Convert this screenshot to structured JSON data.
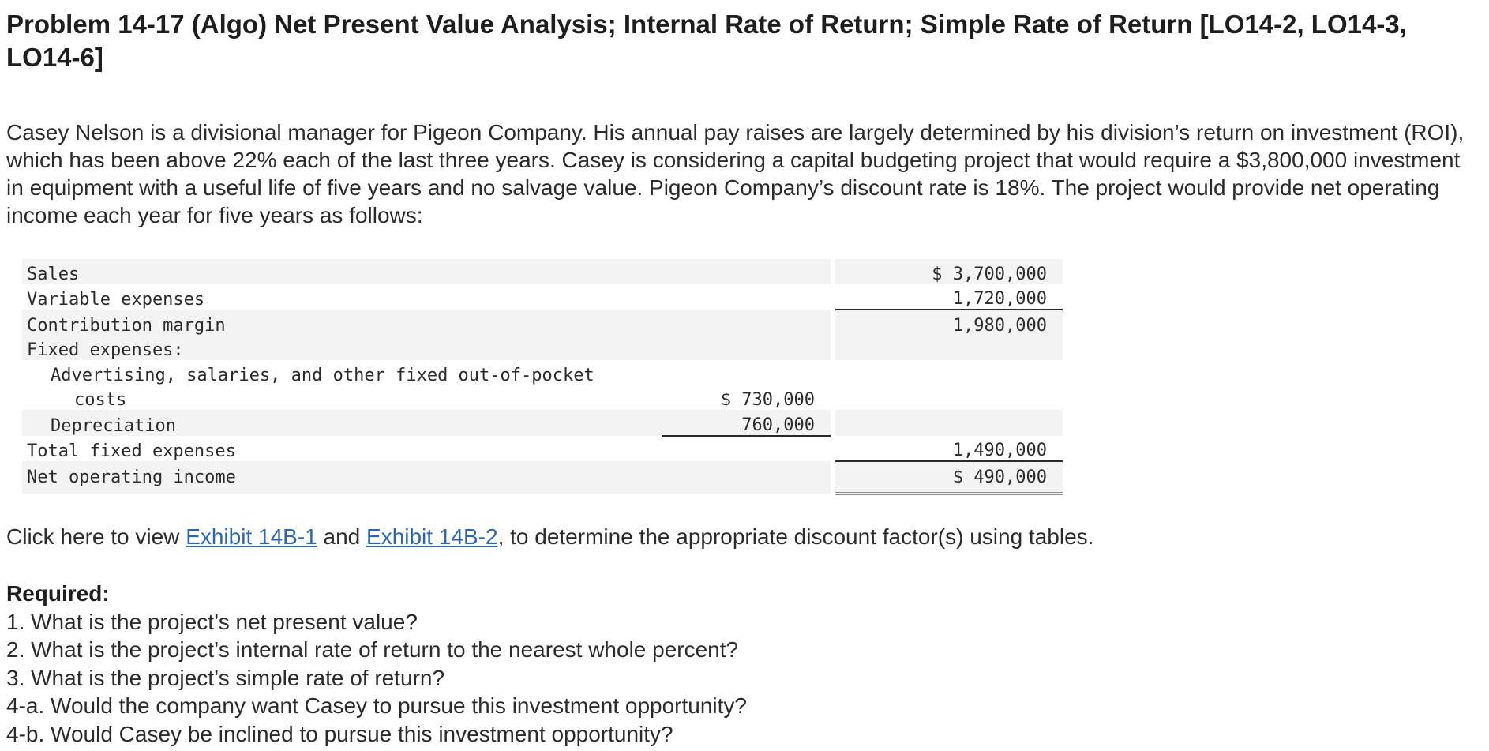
{
  "title": "Problem 14-17 (Algo) Net Present Value Analysis; Internal Rate of Return; Simple Rate of Return [LO14-2, LO14-3, LO14-6]",
  "intro": "Casey Nelson is a divisional manager for Pigeon Company. His annual pay raises are largely determined by his division’s return on investment (ROI), which has been above 22% each of the last three years. Casey is considering a capital budgeting project that would require a $3,800,000 investment in equipment with a useful life of five years and no salvage value. Pigeon Company’s discount rate is 18%. The project would provide net operating income each year for five years as follows:",
  "income_statement": {
    "sales": {
      "label": "Sales",
      "right": "$ 3,700,000"
    },
    "variable_expenses": {
      "label": "Variable expenses",
      "right": "1,720,000"
    },
    "contribution_margin": {
      "label": "Contribution margin",
      "right": "1,980,000"
    },
    "fixed_expenses_header": {
      "label": "Fixed expenses:"
    },
    "advertising": {
      "label_line1": "Advertising, salaries, and other fixed out-of-pocket",
      "label_line2": "costs",
      "mid": "$ 730,000"
    },
    "depreciation": {
      "label": "Depreciation",
      "mid": "760,000"
    },
    "total_fixed": {
      "label": "Total fixed expenses",
      "right": "1,490,000"
    },
    "net_operating_income": {
      "label": "Net operating income",
      "right": "$ 490,000"
    }
  },
  "exhibit_line": {
    "prefix": "Click here to view ",
    "link1": "Exhibit 14B-1",
    "middle": " and ",
    "link2": "Exhibit 14B-2",
    "suffix": ", to determine the appropriate discount factor(s) using tables."
  },
  "required": {
    "heading": "Required:",
    "questions": [
      "1. What is the project’s net present value?",
      "2. What is the project’s internal rate of return to the nearest whole percent?",
      "3. What is the project’s simple rate of return?",
      "4-a. Would the company want Casey to pursue this investment opportunity?",
      "4-b. Would Casey be inclined to pursue this investment opportunity?"
    ]
  },
  "colors": {
    "link": "#2a66b3",
    "row_shade": "#f3f3f3",
    "text": "#2b2b2b"
  }
}
